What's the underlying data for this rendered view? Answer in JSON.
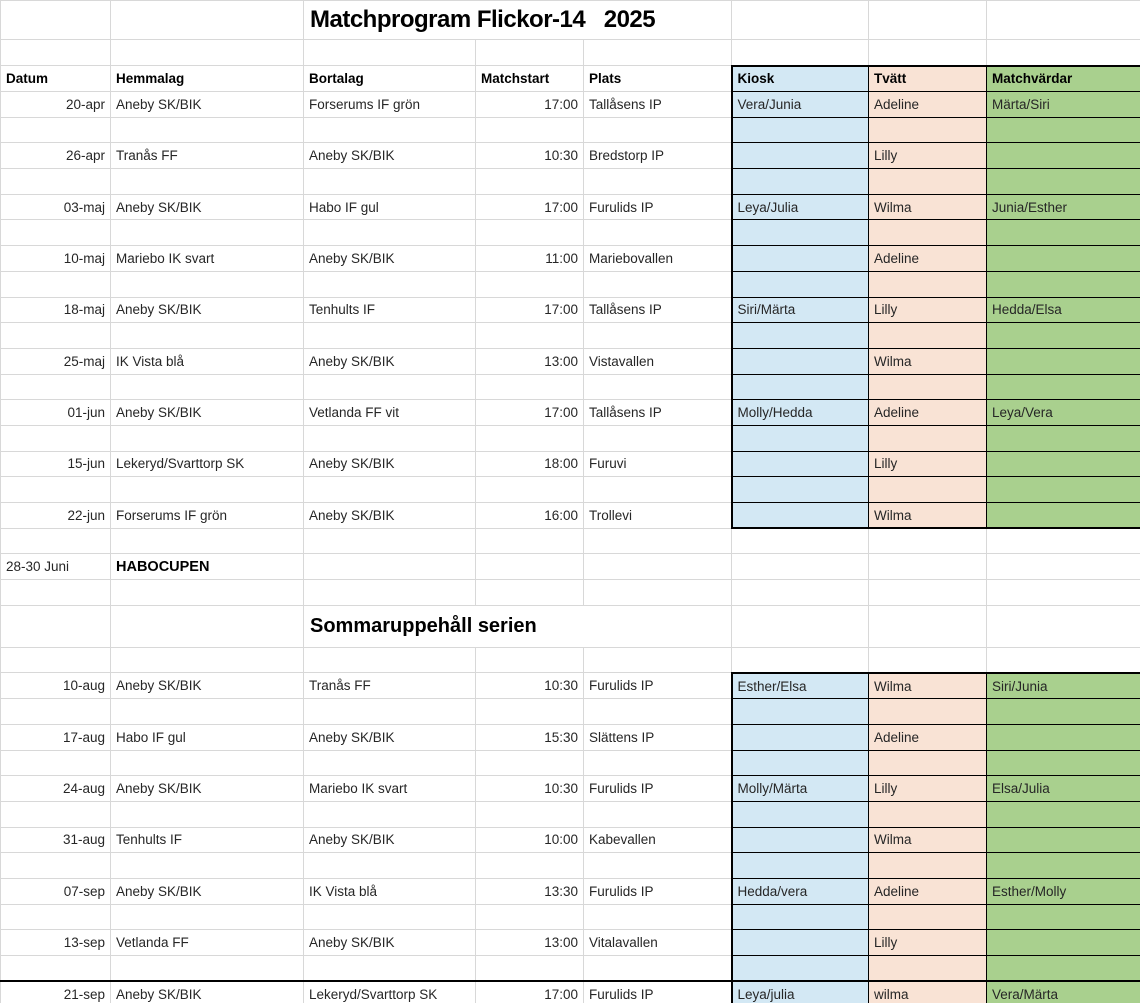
{
  "title": "Matchprogram Flickor-14   2025",
  "header": {
    "columns": [
      "Datum",
      "Hemmalag",
      "Bortalag",
      "Matchstart",
      "Plats",
      "Kiosk",
      "Tvätt",
      "Matchvärdar"
    ]
  },
  "spring_matches": [
    {
      "datum": "20-apr",
      "hemmalag": "Aneby SK/BIK",
      "bortalag": "Forserums IF grön",
      "matchstart": "17:00",
      "plats": "Tallåsens IP",
      "kiosk": "Vera/Junia",
      "tvatt": "Adeline",
      "matchvardar": "Märta/Siri"
    },
    {
      "datum": "26-apr",
      "hemmalag": "Tranås FF",
      "bortalag": "Aneby SK/BIK",
      "matchstart": "10:30",
      "plats": "Bredstorp IP",
      "kiosk": "",
      "tvatt": "Lilly",
      "matchvardar": ""
    },
    {
      "datum": "03-maj",
      "hemmalag": "Aneby SK/BIK",
      "bortalag": "Habo IF gul",
      "matchstart": "17:00",
      "plats": "Furulids IP",
      "kiosk": "Leya/Julia",
      "tvatt": "Wilma",
      "matchvardar": "Junia/Esther"
    },
    {
      "datum": "10-maj",
      "hemmalag": "Mariebo IK svart",
      "bortalag": "Aneby SK/BIK",
      "matchstart": "11:00",
      "plats": "Mariebovallen",
      "kiosk": "",
      "tvatt": "Adeline",
      "matchvardar": ""
    },
    {
      "datum": "18-maj",
      "hemmalag": "Aneby SK/BIK",
      "bortalag": "Tenhults IF",
      "matchstart": "17:00",
      "plats": "Tallåsens IP",
      "kiosk": "Siri/Märta",
      "tvatt": "Lilly",
      "matchvardar": "Hedda/Elsa"
    },
    {
      "datum": "25-maj",
      "hemmalag": "IK Vista blå",
      "bortalag": "Aneby SK/BIK",
      "matchstart": "13:00",
      "plats": "Vistavallen",
      "kiosk": "",
      "tvatt": "Wilma",
      "matchvardar": ""
    },
    {
      "datum": "01-jun",
      "hemmalag": "Aneby SK/BIK",
      "bortalag": "Vetlanda FF vit",
      "matchstart": "17:00",
      "plats": "Tallåsens IP",
      "kiosk": "Molly/Hedda",
      "tvatt": "Adeline",
      "matchvardar": "Leya/Vera"
    },
    {
      "datum": "15-jun",
      "hemmalag": "Lekeryd/Svarttorp SK",
      "bortalag": "Aneby SK/BIK",
      "matchstart": "18:00",
      "plats": "Furuvi",
      "kiosk": "",
      "tvatt": "Lilly",
      "matchvardar": ""
    },
    {
      "datum": "22-jun",
      "hemmalag": "Forserums IF grön",
      "bortalag": "Aneby SK/BIK",
      "matchstart": "16:00",
      "plats": "Trollevi",
      "kiosk": "",
      "tvatt": "Wilma",
      "matchvardar": ""
    }
  ],
  "cup": {
    "datum": "28-30 Juni",
    "label": "HABOCUPEN"
  },
  "summer_break": "Sommaruppehåll serien",
  "autumn_matches": [
    {
      "datum": "10-aug",
      "hemmalag": "Aneby SK/BIK",
      "bortalag": "Tranås FF",
      "matchstart": "10:30",
      "plats": "Furulids IP",
      "kiosk": "Esther/Elsa",
      "tvatt": "Wilma",
      "matchvardar": "Siri/Junia"
    },
    {
      "datum": "17-aug",
      "hemmalag": "Habo IF gul",
      "bortalag": "Aneby SK/BIK",
      "matchstart": "15:30",
      "plats": "Slättens IP",
      "kiosk": "",
      "tvatt": "Adeline",
      "matchvardar": ""
    },
    {
      "datum": "24-aug",
      "hemmalag": "Aneby SK/BIK",
      "bortalag": "Mariebo IK svart",
      "matchstart": "10:30",
      "plats": "Furulids IP",
      "kiosk": "Molly/Märta",
      "tvatt": "Lilly",
      "matchvardar": "Elsa/Julia"
    },
    {
      "datum": "31-aug",
      "hemmalag": "Tenhults IF",
      "bortalag": "Aneby SK/BIK",
      "matchstart": "10:00",
      "plats": "Kabevallen",
      "kiosk": "",
      "tvatt": "Wilma",
      "matchvardar": ""
    },
    {
      "datum": "07-sep",
      "hemmalag": "Aneby SK/BIK",
      "bortalag": "IK Vista blå",
      "matchstart": "13:30",
      "plats": "Furulids IP",
      "kiosk": "Hedda/vera",
      "tvatt": "Adeline",
      "matchvardar": "Esther/Molly"
    },
    {
      "datum": "13-sep",
      "hemmalag": "Vetlanda FF",
      "bortalag": "Aneby SK/BIK",
      "matchstart": "13:00",
      "plats": "Vitalavallen",
      "kiosk": "",
      "tvatt": "Lilly",
      "matchvardar": ""
    },
    {
      "datum": "21-sep",
      "hemmalag": "Aneby SK/BIK",
      "bortalag": "Lekeryd/Svarttorp SK",
      "matchstart": "17:00",
      "plats": "Furulids IP",
      "kiosk": "Leya/julia",
      "tvatt": "wilma",
      "matchvardar": "Vera/Märta"
    }
  ],
  "colors": {
    "kiosk_bg": "#d3e8f4",
    "tvatt_bg": "#f9e3d5",
    "matchvardar_bg": "#a9d08e",
    "gridline": "#d8d8d8",
    "block_border": "#000000"
  }
}
